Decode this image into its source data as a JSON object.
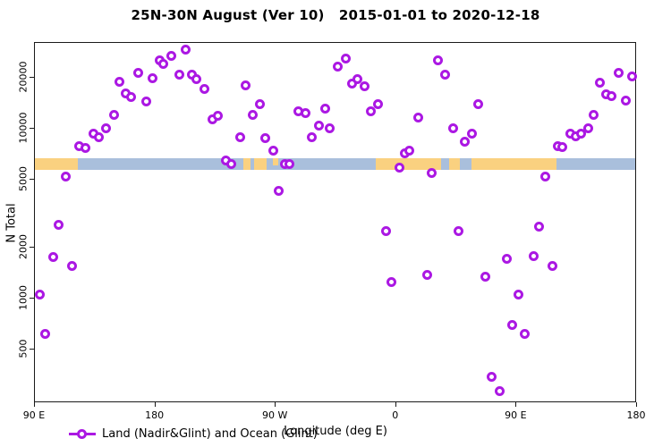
{
  "title": "25N-30N August (Ver 10)   2015-01-01 to 2020-12-18",
  "legend": {
    "label": "Land (Nadir&Glint) and Ocean (Glint)",
    "marker_color": "#ab18e3"
  },
  "colors": {
    "point_ring": "#ab18e3",
    "ocean_band": "#a9bfdc",
    "land_band": "#fad180",
    "axis": "#1a1a1a"
  },
  "chart_data": {
    "type": "scatter",
    "title": "25N-30N August (Ver 10)   2015-01-01 to 2020-12-18",
    "xlabel": "Longitude (deg E)",
    "ylabel": "N Total",
    "x_axis": {
      "start_deg": 90,
      "span_deg": 450,
      "ticks": [
        {
          "deg": 90,
          "label": "90 E"
        },
        {
          "deg": 180,
          "label": "180"
        },
        {
          "deg": 270,
          "label": "90 W"
        },
        {
          "deg": 360,
          "label": "0"
        },
        {
          "deg": 450,
          "label": "90 E"
        },
        {
          "deg": 540,
          "label": "180"
        }
      ]
    },
    "y_axis": {
      "scale": "log",
      "min": 242,
      "max": 32000,
      "ticks": [
        500,
        1000,
        2000,
        5000,
        10000,
        20000
      ]
    },
    "map_band": {
      "description": "land (orange) vs ocean (blue) strip across longitudes",
      "top_value": 6740,
      "bottom_value": 5720,
      "land_segments_deg": [
        [
          90,
          122
        ],
        [
          245.5,
          263.5
        ],
        [
          345,
          393.6
        ],
        [
          399.6,
          407.6
        ],
        [
          416,
          479.5
        ]
      ],
      "ocean_gaps_deg": [
        [
          251,
          253.5
        ]
      ],
      "land_specks_deg": [
        [
          268,
          272
        ]
      ]
    },
    "points": [
      [
        113,
        5200
      ],
      [
        123,
        7900
      ],
      [
        127.5,
        7700
      ],
      [
        133.5,
        9400
      ],
      [
        137.5,
        8900
      ],
      [
        143,
        10100
      ],
      [
        149.5,
        12000
      ],
      [
        153.5,
        19000
      ],
      [
        158,
        16200
      ],
      [
        162,
        15300
      ],
      [
        167,
        21200
      ],
      [
        173,
        14400
      ],
      [
        178,
        19900
      ],
      [
        183,
        25400
      ],
      [
        186,
        24200
      ],
      [
        192,
        27000
      ],
      [
        198,
        20900
      ],
      [
        202.5,
        29200
      ],
      [
        207.5,
        20700
      ],
      [
        211,
        19700
      ],
      [
        217,
        17200
      ],
      [
        223,
        11400
      ],
      [
        227,
        11900
      ],
      [
        233,
        6500
      ],
      [
        237,
        6200
      ],
      [
        243.5,
        8900
      ],
      [
        247.5,
        17900
      ],
      [
        252.5,
        12100
      ],
      [
        258,
        14000
      ],
      [
        262.5,
        8800
      ],
      [
        268,
        7400
      ],
      [
        272.5,
        4300
      ],
      [
        277,
        6200
      ],
      [
        280.5,
        6200
      ],
      [
        287,
        12600
      ],
      [
        292,
        12300
      ],
      [
        297,
        8900
      ],
      [
        302,
        10400
      ],
      [
        307,
        13200
      ],
      [
        310.5,
        10000
      ],
      [
        316.5,
        23300
      ],
      [
        322.5,
        25800
      ],
      [
        327,
        18500
      ],
      [
        331,
        19700
      ],
      [
        336.5,
        17700
      ],
      [
        341,
        12600
      ],
      [
        346.5,
        14000
      ],
      [
        352.5,
        2500
      ],
      [
        356.5,
        1250
      ],
      [
        362.5,
        5900
      ],
      [
        366.5,
        7200
      ],
      [
        370,
        7400
      ],
      [
        376.5,
        11600
      ],
      [
        383.5,
        1370
      ],
      [
        386.5,
        5500
      ],
      [
        391.5,
        25400
      ],
      [
        396.5,
        20900
      ],
      [
        402.5,
        10100
      ],
      [
        406.5,
        2500
      ],
      [
        411,
        8400
      ],
      [
        416.5,
        9400
      ],
      [
        421,
        14000
      ],
      [
        426.5,
        1340
      ],
      [
        431.5,
        344
      ],
      [
        437.5,
        285
      ],
      [
        442.5,
        1720
      ],
      [
        446.5,
        700
      ],
      [
        451.5,
        1060
      ],
      [
        456,
        620
      ],
      [
        462.5,
        1770
      ],
      [
        467,
        2640
      ],
      [
        471.5,
        5200
      ],
      [
        477,
        1550
      ],
      [
        480.5,
        7900
      ],
      [
        484.5,
        7800
      ],
      [
        490.5,
        9400
      ],
      [
        494,
        9000
      ],
      [
        498.5,
        9400
      ],
      [
        503.5,
        10100
      ],
      [
        507.5,
        12000
      ],
      [
        512,
        18700
      ],
      [
        517,
        16000
      ],
      [
        521,
        15600
      ],
      [
        526.5,
        21200
      ],
      [
        531.5,
        14600
      ],
      [
        536,
        20200
      ],
      [
        107.5,
        2700
      ],
      [
        103.5,
        1750
      ],
      [
        118,
        1550
      ],
      [
        93.5,
        1050
      ],
      [
        97.5,
        620
      ]
    ]
  }
}
